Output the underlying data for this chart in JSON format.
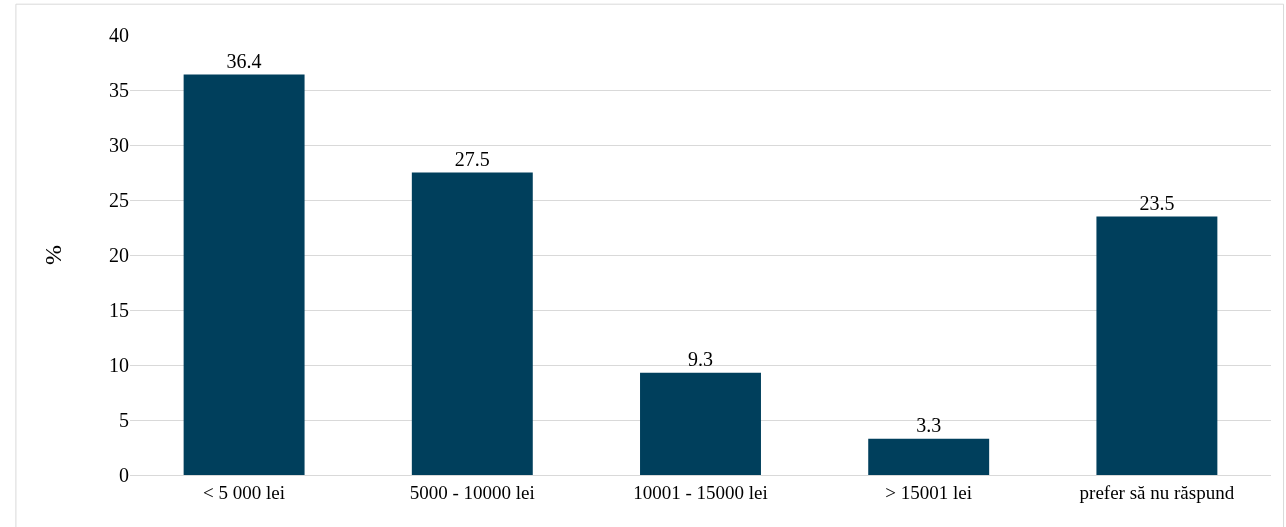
{
  "chart_data": {
    "type": "bar",
    "ylabel": "%",
    "categories": [
      "< 5 000 lei",
      "5000 - 10000 lei",
      "10001 - 15000 lei",
      "> 15001 lei",
      "prefer să nu răspund"
    ],
    "values": [
      36.4,
      27.5,
      9.3,
      3.3,
      23.5
    ],
    "color": "#003f5c",
    "ylim": [
      0,
      40
    ],
    "yticks": [
      0,
      5,
      10,
      15,
      20,
      25,
      30,
      35,
      40
    ],
    "grid": "y",
    "data_labels": true,
    "legend": false
  }
}
